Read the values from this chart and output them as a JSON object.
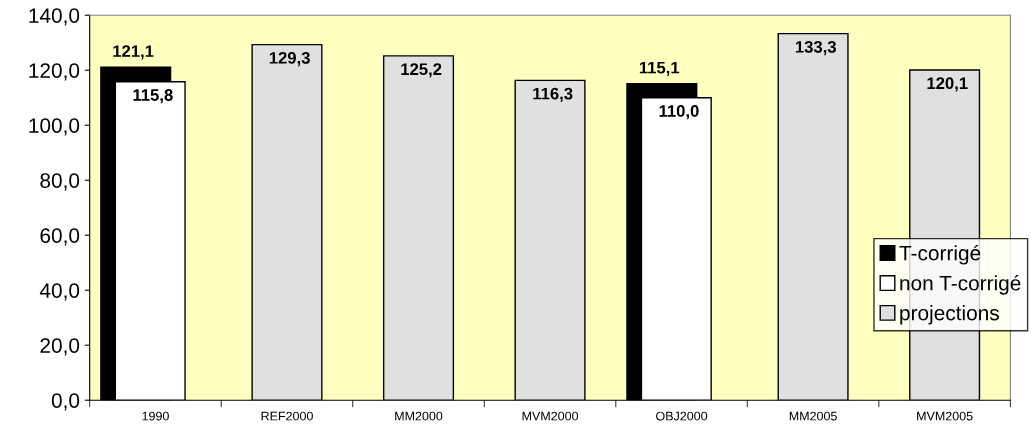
{
  "chart_data": {
    "type": "bar",
    "categories": [
      "1990",
      "REF2000",
      "MM2000",
      "MVM2000",
      "OBJ2000",
      "MM2005",
      "MVM2005"
    ],
    "series": [
      {
        "name": "T-corrigé",
        "color": "#000000",
        "values": [
          121.1,
          null,
          null,
          null,
          115.1,
          null,
          null
        ],
        "value_labels": [
          "121,1",
          null,
          null,
          null,
          "115,1",
          null,
          null
        ]
      },
      {
        "name": "non T-corrigé",
        "color": "#ffffff",
        "values": [
          115.8,
          null,
          null,
          null,
          110.0,
          null,
          null
        ],
        "value_labels": [
          "115,8",
          null,
          null,
          null,
          "110,0",
          null,
          null
        ]
      },
      {
        "name": "projections",
        "color": "#e0e0e0",
        "values": [
          null,
          129.3,
          125.2,
          116.3,
          null,
          133.3,
          120.1
        ],
        "value_labels": [
          null,
          "129,3",
          "125,2",
          "116,3",
          null,
          "133,3",
          "120,1"
        ]
      }
    ],
    "ylim": [
      0,
      140
    ],
    "yticks": [
      {
        "value": 0,
        "label": "0,0"
      },
      {
        "value": 20,
        "label": "20,0"
      },
      {
        "value": 40,
        "label": "40,0"
      },
      {
        "value": 60,
        "label": "60,0"
      },
      {
        "value": 80,
        "label": "80,0"
      },
      {
        "value": 100,
        "label": "100,0"
      },
      {
        "value": 120,
        "label": "120,0"
      },
      {
        "value": 140,
        "label": "140,0"
      }
    ],
    "grid": false,
    "legend": "right"
  }
}
